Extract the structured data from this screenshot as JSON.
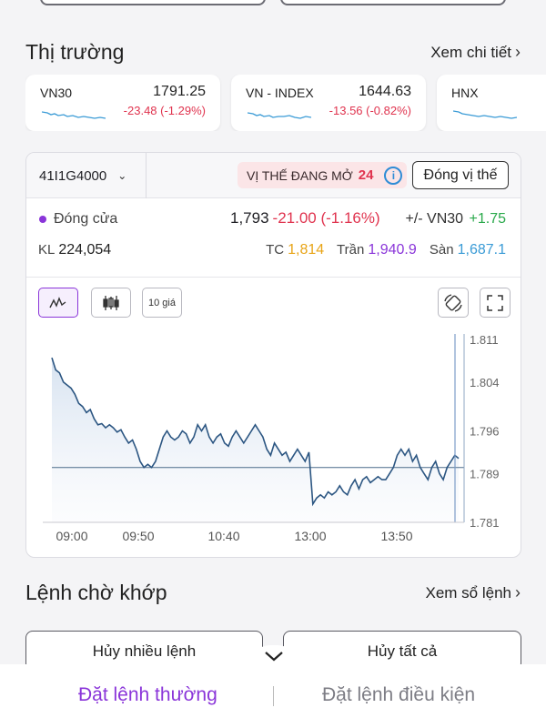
{
  "market": {
    "title": "Thị trường",
    "detail_link": "Xem chi tiết",
    "cards": [
      {
        "name": "VN30",
        "value": "1791.25",
        "change": "-23.48 (-1.29%)"
      },
      {
        "name": "VN - INDEX",
        "value": "1644.63",
        "change": "-13.56 (-0.82%)"
      },
      {
        "name": "HNX",
        "value": "",
        "change": ""
      }
    ]
  },
  "contract": {
    "code": "41I1G4000",
    "open_position_label": "VỊ THẾ ĐANG MỞ",
    "open_position_count": "24",
    "close_button": "Đóng vị thế"
  },
  "quote": {
    "close_label": "Đóng cửa",
    "price": "1,793",
    "change": "-21.00 (-1.16%)",
    "basis_label": "+/- VN30",
    "basis_value": "+1.75",
    "volume_label": "KL",
    "volume": "224,054",
    "ref_label": "TC",
    "ref": "1,814",
    "ceiling_label": "Trần",
    "ceiling": "1,940.9",
    "floor_label": "Sàn",
    "floor": "1,687.1"
  },
  "chart_tools": {
    "ten_price": "10 giá"
  },
  "chart_data": {
    "type": "line",
    "x_ticks": [
      "09:00",
      "09:50",
      "10:40",
      "13:00",
      "13:50"
    ],
    "y_ticks": [
      "1.811",
      "1.804",
      "1.796",
      "1.789",
      "1.781"
    ],
    "ylim": [
      1781,
      1811
    ],
    "reference_line": 1790,
    "series": [
      {
        "values": [
          1808,
          1806,
          1805.5,
          1804,
          1803.5,
          1803,
          1802,
          1800.5,
          1800,
          1799,
          1799.5,
          1798,
          1797,
          1797.2,
          1796.5,
          1797,
          1796.5,
          1795.8,
          1796.2,
          1795,
          1794,
          1794.5,
          1793,
          1791,
          1790,
          1790.5,
          1790,
          1791,
          1793,
          1795,
          1796,
          1795,
          1794.5,
          1795,
          1796,
          1795.5,
          1794,
          1795,
          1797,
          1796,
          1797,
          1795,
          1794,
          1795,
          1795.5,
          1794,
          1793.5,
          1795,
          1796,
          1795,
          1794,
          1795,
          1796,
          1797,
          1796,
          1795,
          1793,
          1792,
          1794,
          1793,
          1792,
          1792.5,
          1791,
          1792,
          1793,
          1792,
          1791,
          1792.5,
          1784,
          1785,
          1785.5,
          1785,
          1786,
          1785.5,
          1786,
          1787,
          1786,
          1785.5,
          1787,
          1788,
          1786.5,
          1788,
          1788.5,
          1787.5,
          1788,
          1788.5,
          1788,
          1788,
          1789,
          1790,
          1792,
          1793,
          1792,
          1793,
          1791,
          1792,
          1790,
          1789,
          1788,
          1790,
          1791,
          1789,
          1788,
          1790,
          1791,
          1792,
          1791.5
        ]
      }
    ]
  },
  "pending": {
    "title": "Lệnh chờ khớp",
    "book_link": "Xem sổ lệnh",
    "cancel_many": "Hủy nhiều lệnh",
    "cancel_all": "Hủy tất cả"
  },
  "footer": {
    "tab_normal": "Đặt lệnh thường",
    "tab_conditional": "Đặt lệnh điều kiện"
  }
}
